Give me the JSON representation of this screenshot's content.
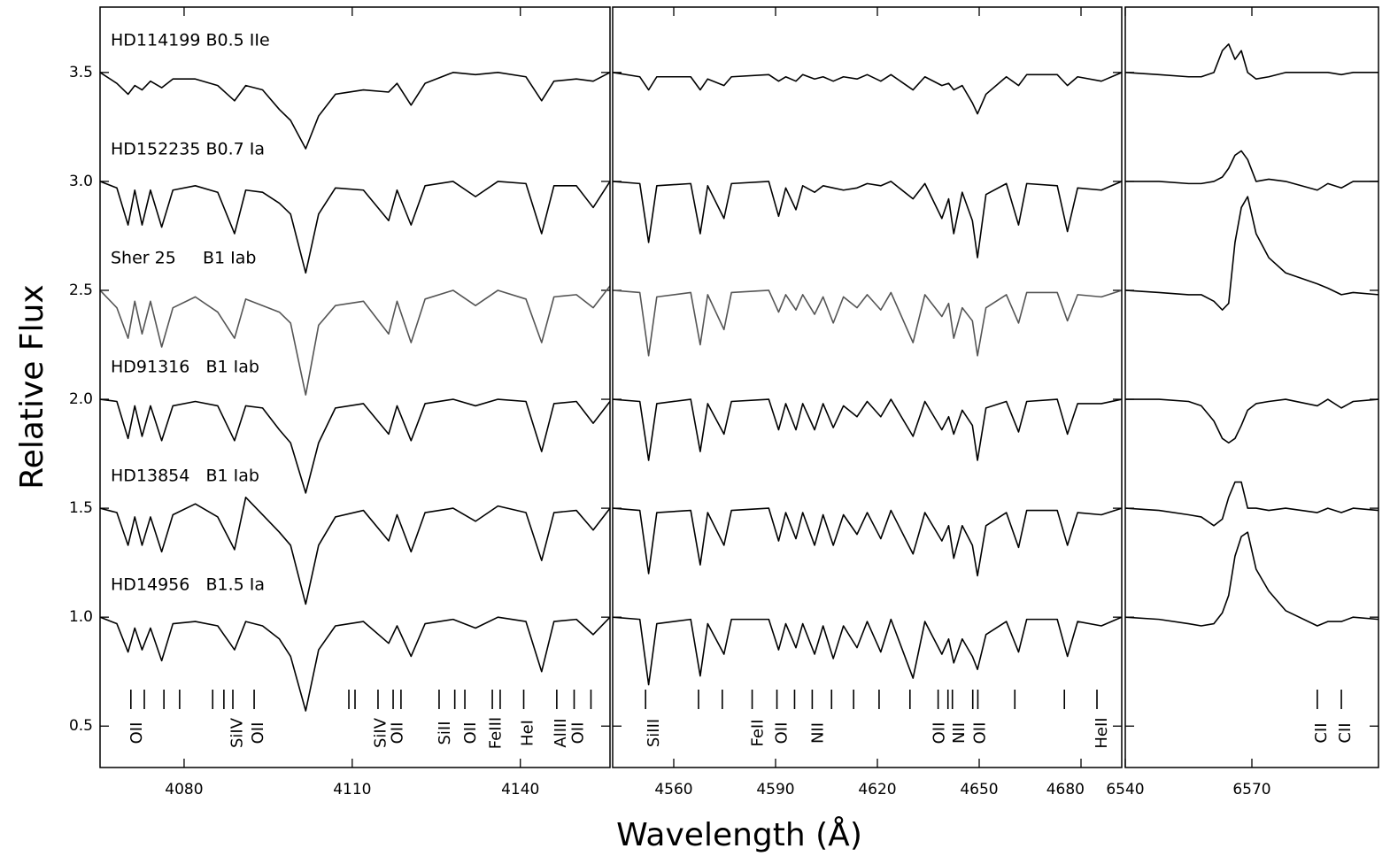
{
  "chart_data": [
    {
      "type": "line",
      "ylabel": "Relative Flux",
      "xlim": [
        4065,
        4156
      ],
      "ylim": [
        0.31,
        3.8
      ],
      "xticks": [
        4080,
        4110,
        4140
      ],
      "yticks": [
        0.5,
        {
          "value": 1,
          "label": "1.0"
        },
        1.5,
        {
          "value": 2,
          "label": "2.0"
        },
        2.5,
        {
          "value": 3,
          "label": "3.0"
        },
        3.5
      ],
      "x": [
        4065,
        4068,
        4070,
        4071.2,
        4072.5,
        4074,
        4076,
        4078,
        4082,
        4086,
        4089,
        4091,
        4094,
        4097,
        4099,
        4101.7,
        4104,
        4107,
        4112,
        4116.5,
        4118,
        4120.5,
        4123,
        4128,
        4132,
        4136,
        4141,
        4143.8,
        4146,
        4150,
        4153,
        4156
      ],
      "series": [
        {
          "name": "HD114199 B0.5 IIe",
          "color": "#000000",
          "values": [
            3.5,
            3.45,
            3.4,
            3.44,
            3.42,
            3.46,
            3.43,
            3.47,
            3.47,
            3.44,
            3.37,
            3.44,
            3.42,
            3.33,
            3.28,
            3.15,
            3.3,
            3.4,
            3.42,
            3.41,
            3.45,
            3.35,
            3.45,
            3.5,
            3.49,
            3.5,
            3.48,
            3.37,
            3.46,
            3.47,
            3.46,
            3.5
          ]
        },
        {
          "name": "HD152235 B0.7 Ia",
          "color": "#000000",
          "values": [
            3.0,
            2.97,
            2.8,
            2.96,
            2.8,
            2.96,
            2.79,
            2.96,
            2.98,
            2.95,
            2.76,
            2.96,
            2.95,
            2.9,
            2.85,
            2.58,
            2.85,
            2.97,
            2.96,
            2.82,
            2.96,
            2.8,
            2.98,
            3.0,
            2.93,
            3.0,
            2.99,
            2.76,
            2.98,
            2.98,
            2.88,
            3.0
          ]
        },
        {
          "name": "Sher 25     B1 Iab",
          "color": "#555555",
          "values": [
            2.5,
            2.42,
            2.28,
            2.45,
            2.3,
            2.45,
            2.24,
            2.42,
            2.47,
            2.4,
            2.28,
            2.46,
            2.43,
            2.4,
            2.35,
            2.02,
            2.34,
            2.43,
            2.45,
            2.3,
            2.45,
            2.26,
            2.46,
            2.5,
            2.43,
            2.5,
            2.46,
            2.26,
            2.47,
            2.48,
            2.42,
            2.52
          ]
        },
        {
          "name": "HD91316   B1 Iab",
          "color": "#000000",
          "values": [
            2.0,
            1.99,
            1.82,
            1.97,
            1.83,
            1.97,
            1.81,
            1.97,
            1.99,
            1.97,
            1.81,
            1.97,
            1.96,
            1.86,
            1.8,
            1.57,
            1.8,
            1.96,
            1.98,
            1.84,
            1.97,
            1.81,
            1.98,
            2.0,
            1.97,
            2.0,
            1.99,
            1.76,
            1.98,
            1.99,
            1.89,
            1.99
          ]
        },
        {
          "name": "HD13854   B1 Iab",
          "color": "#000000",
          "values": [
            1.5,
            1.48,
            1.33,
            1.46,
            1.33,
            1.46,
            1.3,
            1.47,
            1.52,
            1.46,
            1.31,
            1.55,
            1.47,
            1.39,
            1.33,
            1.06,
            1.33,
            1.46,
            1.49,
            1.35,
            1.47,
            1.3,
            1.48,
            1.5,
            1.44,
            1.51,
            1.48,
            1.26,
            1.48,
            1.49,
            1.4,
            1.5
          ]
        },
        {
          "name": "HD14956   B1.5 Ia",
          "color": "#000000",
          "values": [
            1.0,
            0.97,
            0.84,
            0.95,
            0.85,
            0.95,
            0.8,
            0.97,
            0.98,
            0.96,
            0.85,
            0.98,
            0.96,
            0.9,
            0.82,
            0.57,
            0.85,
            0.96,
            0.98,
            0.88,
            0.96,
            0.82,
            0.97,
            0.99,
            0.95,
            1.0,
            0.98,
            0.75,
            0.98,
            0.99,
            0.92,
            1.0
          ]
        }
      ],
      "line_marks": [
        4070.5,
        4072.9,
        4076.4,
        4079.2,
        4085.1,
        4087.1,
        4088.7,
        4092.5,
        4109.4,
        4110.5,
        4114.6,
        4117.3,
        4118.7,
        4125.5,
        4128.3,
        4130.1,
        4135.0,
        4136.4,
        4140.6,
        4146.5,
        4149.6,
        4152.6
      ],
      "line_labels": [
        {
          "x": 4071.6,
          "text": "OII"
        },
        {
          "x": 4089.6,
          "text": "SiIV"
        },
        {
          "x": 4093.3,
          "text": "OII"
        },
        {
          "x": 4115.2,
          "text": "SiIV"
        },
        {
          "x": 4118.2,
          "text": "OII"
        },
        {
          "x": 4126.6,
          "text": "SiII"
        },
        {
          "x": 4131.2,
          "text": "OII"
        },
        {
          "x": 4135.7,
          "text": "FeIII"
        },
        {
          "x": 4141.4,
          "text": "HeI"
        },
        {
          "x": 4147.3,
          "text": "AlIII"
        },
        {
          "x": 4150.4,
          "text": "OII"
        }
      ]
    },
    {
      "type": "line",
      "xlabel": "Wavelength (Å)",
      "xlim": [
        4542,
        4692
      ],
      "ylim": [
        0.31,
        3.8
      ],
      "xticks": [
        4560,
        4590,
        4620,
        4650,
        4680
      ],
      "x": [
        4542,
        4550,
        4552.6,
        4555,
        4565,
        4567.8,
        4570,
        4574.8,
        4577,
        4588,
        4590.9,
        4593,
        4596,
        4598,
        4601.5,
        4604,
        4607,
        4610,
        4614,
        4617,
        4621,
        4624,
        4630.5,
        4634,
        4639,
        4641,
        4642.5,
        4645,
        4648,
        4649.5,
        4652,
        4658,
        4661.6,
        4664,
        4673,
        4676,
        4679,
        4686,
        4692
      ],
      "series": [
        {
          "color": "#000000",
          "values": [
            3.5,
            3.48,
            3.42,
            3.48,
            3.48,
            3.42,
            3.47,
            3.44,
            3.48,
            3.49,
            3.46,
            3.48,
            3.46,
            3.49,
            3.47,
            3.48,
            3.46,
            3.48,
            3.47,
            3.49,
            3.46,
            3.49,
            3.42,
            3.48,
            3.44,
            3.45,
            3.42,
            3.44,
            3.36,
            3.31,
            3.4,
            3.48,
            3.44,
            3.49,
            3.49,
            3.44,
            3.48,
            3.46,
            3.5
          ]
        },
        {
          "color": "#000000",
          "values": [
            3.0,
            2.99,
            2.72,
            2.98,
            2.99,
            2.76,
            2.98,
            2.83,
            2.99,
            3.0,
            2.84,
            2.97,
            2.87,
            2.98,
            2.95,
            2.98,
            2.97,
            2.96,
            2.97,
            2.99,
            2.98,
            3.0,
            2.92,
            2.99,
            2.83,
            2.92,
            2.76,
            2.95,
            2.82,
            2.65,
            2.94,
            2.99,
            2.8,
            2.99,
            2.98,
            2.77,
            2.97,
            2.96,
            3.0
          ]
        },
        {
          "color": "#555555",
          "values": [
            2.5,
            2.49,
            2.2,
            2.47,
            2.49,
            2.25,
            2.48,
            2.32,
            2.49,
            2.5,
            2.4,
            2.48,
            2.41,
            2.48,
            2.39,
            2.47,
            2.35,
            2.47,
            2.42,
            2.48,
            2.41,
            2.49,
            2.26,
            2.48,
            2.38,
            2.44,
            2.28,
            2.42,
            2.36,
            2.2,
            2.42,
            2.48,
            2.35,
            2.49,
            2.49,
            2.36,
            2.48,
            2.47,
            2.5
          ]
        },
        {
          "color": "#000000",
          "values": [
            2.0,
            1.99,
            1.72,
            1.98,
            2.0,
            1.76,
            1.98,
            1.84,
            1.99,
            2.0,
            1.86,
            1.98,
            1.86,
            1.98,
            1.86,
            1.98,
            1.87,
            1.97,
            1.92,
            1.99,
            1.92,
            2.0,
            1.83,
            1.99,
            1.86,
            1.92,
            1.84,
            1.95,
            1.88,
            1.72,
            1.96,
            1.99,
            1.85,
            1.99,
            2.0,
            1.84,
            1.98,
            1.98,
            2.0
          ]
        },
        {
          "color": "#000000",
          "values": [
            1.5,
            1.49,
            1.2,
            1.48,
            1.49,
            1.24,
            1.48,
            1.33,
            1.49,
            1.5,
            1.35,
            1.48,
            1.36,
            1.48,
            1.33,
            1.47,
            1.33,
            1.47,
            1.38,
            1.48,
            1.36,
            1.49,
            1.29,
            1.48,
            1.35,
            1.42,
            1.27,
            1.42,
            1.33,
            1.19,
            1.42,
            1.48,
            1.32,
            1.49,
            1.49,
            1.33,
            1.48,
            1.47,
            1.5
          ]
        },
        {
          "color": "#000000",
          "values": [
            1.0,
            0.99,
            0.69,
            0.97,
            0.99,
            0.73,
            0.97,
            0.83,
            0.99,
            0.99,
            0.85,
            0.97,
            0.86,
            0.97,
            0.83,
            0.96,
            0.81,
            0.96,
            0.86,
            0.98,
            0.84,
            0.99,
            0.72,
            0.98,
            0.83,
            0.9,
            0.79,
            0.9,
            0.82,
            0.76,
            0.92,
            0.98,
            0.84,
            0.99,
            0.99,
            0.82,
            0.98,
            0.96,
            1.0
          ]
        }
      ],
      "line_marks": [
        4551.7,
        4567.3,
        4574.3,
        4583.1,
        4590.4,
        4595.6,
        4600.8,
        4606.5,
        4613.0,
        4620.5,
        4629.6,
        4637.9,
        4640.8,
        4642.1,
        4648.1,
        4649.6,
        4660.5,
        4675.1,
        4684.7
      ],
      "line_labels": [
        {
          "x": 4554.3,
          "text": "SiIII"
        },
        {
          "x": 4584.9,
          "text": "FeII"
        },
        {
          "x": 4591.9,
          "text": "OII"
        },
        {
          "x": 4602.6,
          "text": "NII"
        },
        {
          "x": 4638.4,
          "text": "OII"
        },
        {
          "x": 4644.2,
          "text": "NII"
        },
        {
          "x": 4650.4,
          "text": "OII"
        },
        {
          "x": 4686.2,
          "text": "HeII"
        }
      ]
    },
    {
      "type": "line",
      "xlim": [
        6540,
        6600
      ],
      "ylim": [
        0.31,
        3.8
      ],
      "xticks": [
        6540,
        6570
      ],
      "x": [
        6540,
        6548,
        6555,
        6558,
        6561,
        6563,
        6564.5,
        6566,
        6567.5,
        6569,
        6571,
        6574,
        6578,
        6585.5,
        6588,
        6591.2,
        6594,
        6600
      ],
      "series": [
        {
          "color": "#000000",
          "values": [
            3.5,
            3.49,
            3.48,
            3.48,
            3.5,
            3.6,
            3.63,
            3.56,
            3.6,
            3.5,
            3.47,
            3.48,
            3.5,
            3.5,
            3.5,
            3.49,
            3.5,
            3.5
          ]
        },
        {
          "color": "#000000",
          "values": [
            3.0,
            3.0,
            2.99,
            2.99,
            3.0,
            3.02,
            3.06,
            3.12,
            3.14,
            3.1,
            3.0,
            3.01,
            3.0,
            2.96,
            2.99,
            2.97,
            3.0,
            3.0
          ]
        },
        {
          "color": "#000000",
          "values": [
            2.5,
            2.49,
            2.48,
            2.48,
            2.45,
            2.41,
            2.44,
            2.72,
            2.88,
            2.93,
            2.76,
            2.65,
            2.58,
            2.53,
            2.51,
            2.48,
            2.49,
            2.48
          ]
        },
        {
          "color": "#000000",
          "values": [
            2.0,
            2.0,
            1.99,
            1.97,
            1.9,
            1.82,
            1.8,
            1.82,
            1.88,
            1.95,
            1.98,
            1.99,
            2.0,
            1.97,
            2.0,
            1.96,
            1.99,
            2.0
          ]
        },
        {
          "color": "#000000",
          "values": [
            1.5,
            1.49,
            1.47,
            1.46,
            1.42,
            1.45,
            1.55,
            1.62,
            1.62,
            1.5,
            1.5,
            1.49,
            1.5,
            1.48,
            1.5,
            1.48,
            1.5,
            1.49
          ]
        },
        {
          "color": "#000000",
          "values": [
            1.0,
            0.99,
            0.97,
            0.96,
            0.97,
            1.02,
            1.1,
            1.28,
            1.37,
            1.39,
            1.22,
            1.12,
            1.03,
            0.96,
            0.98,
            0.98,
            1.0,
            0.99
          ]
        }
      ],
      "line_marks": [
        6585.5,
        6591.2
      ],
      "line_labels": [
        {
          "x": 6586.6,
          "text": "CII"
        },
        {
          "x": 6592.2,
          "text": "CII"
        }
      ]
    }
  ]
}
